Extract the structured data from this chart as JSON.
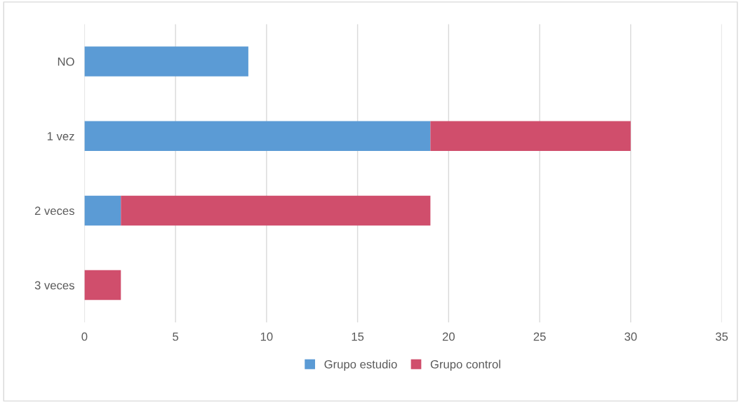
{
  "chart_data": {
    "type": "bar",
    "orientation": "horizontal",
    "stacked": true,
    "categories": [
      "NO",
      "1 vez",
      "2 veces",
      "3 veces"
    ],
    "series": [
      {
        "name": "Grupo estudio",
        "color": "#5b9bd5",
        "values": [
          9,
          19,
          2,
          0
        ]
      },
      {
        "name": "Grupo control",
        "color": "#d04e6c",
        "values": [
          0,
          11,
          17,
          2
        ]
      }
    ],
    "xlim": [
      0,
      35
    ],
    "xticks": [
      0,
      5,
      10,
      15,
      20,
      25,
      30,
      35
    ],
    "grid": "x",
    "legend": "bottom"
  }
}
